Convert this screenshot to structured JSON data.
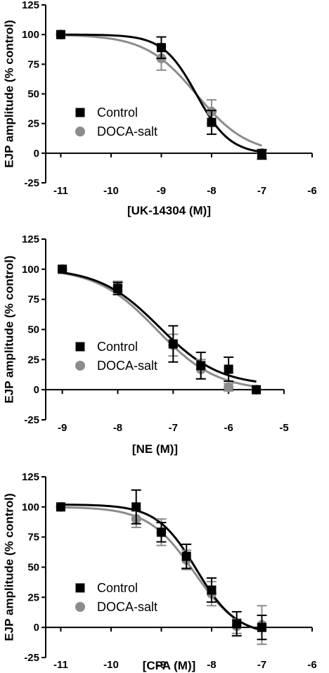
{
  "colors": {
    "control": "#000000",
    "doca": "#8c8c8c",
    "axis": "#000000"
  },
  "chart_data": [
    {
      "type": "scatter",
      "xlabel": "[UK-14304 (M)]",
      "ylabel": "EJP amplitude (% control)",
      "xlim": [
        -11.3,
        -6
      ],
      "ylim": [
        -25,
        125
      ],
      "xticks": [
        -11,
        -10,
        -9,
        -8,
        -7,
        -6
      ],
      "xtick_labels": [
        "-11",
        "-10",
        "-9",
        "-8",
        "-7",
        "-6"
      ],
      "yticks": [
        -25,
        0,
        25,
        50,
        75,
        100,
        125
      ],
      "ytick_labels": [
        "-25",
        "0",
        "25",
        "50",
        "75",
        "100",
        "125"
      ],
      "legend": {
        "position": "center-left",
        "entries": [
          "Control",
          "DOCA-salt"
        ]
      },
      "series": [
        {
          "name": "Control",
          "marker": "square",
          "x": [
            -11,
            -9,
            -8,
            -7
          ],
          "y": [
            100,
            89,
            26,
            -1
          ],
          "err": [
            0,
            9,
            10,
            4
          ],
          "fit": {
            "bottom": -1,
            "top": 100,
            "logec50": -8.3,
            "hill": 1.3
          }
        },
        {
          "name": "DOCA-salt",
          "marker": "circle",
          "x": [
            -11,
            -9,
            -8,
            -7
          ],
          "y": [
            100,
            80,
            35,
            0
          ],
          "err": [
            0,
            10,
            10,
            3
          ],
          "fit": {
            "bottom": -1,
            "top": 100,
            "logec50": -8.3,
            "hill": 0.85
          }
        }
      ]
    },
    {
      "type": "scatter",
      "xlabel": "[NE (M)]",
      "ylabel": "EJP amplitude (% control)",
      "xlim": [
        -9.3,
        -5
      ],
      "ylim": [
        -25,
        125
      ],
      "xticks": [
        -9,
        -8,
        -7,
        -6,
        -5
      ],
      "xtick_labels": [
        "-9",
        "-8",
        "-7",
        "-6",
        "-5"
      ],
      "yticks": [
        -25,
        0,
        25,
        50,
        75,
        100,
        125
      ],
      "ytick_labels": [
        "-25",
        "0",
        "25",
        "50",
        "75",
        "100",
        "125"
      ],
      "legend": {
        "position": "bottom-left",
        "entries": [
          "Control",
          "DOCA-salt"
        ]
      },
      "series": [
        {
          "name": "Control",
          "marker": "square",
          "x": [
            -9,
            -8,
            -7,
            -6.5,
            -6,
            -5.5
          ],
          "y": [
            100,
            84,
            38,
            20,
            17,
            0
          ],
          "err": [
            0,
            5,
            15,
            11,
            10,
            0
          ],
          "fit": {
            "bottom": 3,
            "top": 101,
            "logec50": -7.25,
            "hill": 0.8
          }
        },
        {
          "name": "DOCA-salt",
          "marker": "circle",
          "x": [
            -9,
            -8,
            -7,
            -6.5,
            -6,
            -5.5
          ],
          "y": [
            100,
            86,
            37,
            17,
            2,
            0
          ],
          "err": [
            0,
            4,
            9,
            8,
            3,
            0
          ],
          "fit": {
            "bottom": -1,
            "top": 101,
            "logec50": -7.3,
            "hill": 0.8
          }
        }
      ]
    },
    {
      "type": "scatter",
      "xlabel": "[CPA (M)]",
      "ylabel": "EJP amplitude (% control)",
      "xlim": [
        -11.3,
        -6
      ],
      "ylim": [
        -25,
        125
      ],
      "xticks": [
        -11,
        -10,
        -9,
        -8,
        -7,
        -6
      ],
      "xtick_labels": [
        "-11",
        "-10",
        "-9",
        "-8",
        "-7",
        "-6"
      ],
      "yticks": [
        -25,
        0,
        25,
        50,
        75,
        100,
        125
      ],
      "ytick_labels": [
        "-25",
        "0",
        "25",
        "50",
        "75",
        "100",
        "125"
      ],
      "legend": {
        "position": "bottom-left",
        "entries": [
          "Control",
          "DOCA-salt"
        ]
      },
      "series": [
        {
          "name": "Control",
          "marker": "square",
          "x": [
            -11,
            -9.5,
            -9,
            -8.5,
            -8,
            -7.5,
            -7
          ],
          "y": [
            100,
            100,
            79,
            59,
            31,
            3,
            0
          ],
          "err": [
            0,
            14,
            8,
            10,
            10,
            10,
            10
          ],
          "fit": {
            "bottom": -6,
            "top": 102,
            "logec50": -8.3,
            "hill": 1.1
          }
        },
        {
          "name": "DOCA-salt",
          "marker": "circle",
          "x": [
            -11,
            -9.5,
            -9,
            -8.5,
            -8,
            -7.5,
            -7
          ],
          "y": [
            100,
            90,
            79,
            56,
            28,
            1,
            2
          ],
          "err": [
            0,
            7,
            11,
            8,
            10,
            6,
            16
          ],
          "fit": {
            "bottom": -8,
            "top": 100,
            "logec50": -8.35,
            "hill": 0.95
          }
        }
      ]
    }
  ]
}
